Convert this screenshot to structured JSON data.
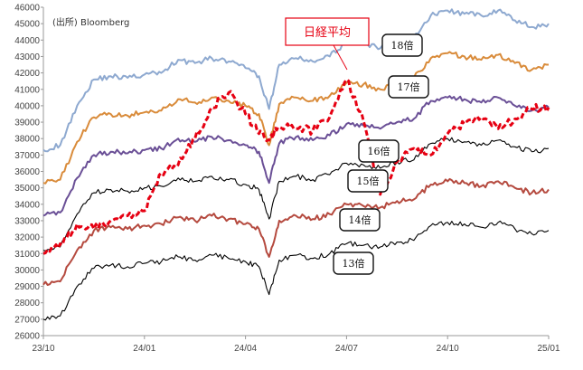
{
  "chart_data": {
    "type": "line",
    "source": "(出所) Bloomberg",
    "xlabel": "",
    "ylabel": "",
    "x_ticks": [
      "23/10",
      "24/01",
      "24/04",
      "24/07",
      "24/10",
      "25/01"
    ],
    "x_range": [
      "23/10",
      "25/01"
    ],
    "ylim": [
      26000,
      46000
    ],
    "y_ticks": [
      26000,
      27000,
      28000,
      29000,
      30000,
      31000,
      32000,
      33000,
      34000,
      35000,
      36000,
      37000,
      38000,
      39000,
      40000,
      41000,
      42000,
      43000,
      44000,
      45000,
      46000
    ],
    "grid": false,
    "series": [
      {
        "name": "18倍",
        "color": "#8ea9d0",
        "style": "solid",
        "x": [
          "23/10",
          "23/10.5",
          "23/11",
          "23/11.5",
          "23/12",
          "23/12.5",
          "24/01",
          "24/01.5",
          "24/02",
          "24/02.5",
          "24/03",
          "24/03.5",
          "24/04",
          "24/04.4",
          "24/04.7",
          "24/05",
          "24/05.5",
          "24/06",
          "24/06.5",
          "24/07",
          "24/07.5",
          "24/08",
          "24/08.5",
          "24/09",
          "24/09.5",
          "24/10",
          "24/10.5",
          "24/11",
          "24/11.5",
          "24/12",
          "24/12.5",
          "25/01"
        ],
        "values": [
          37300,
          37600,
          40000,
          41600,
          41800,
          41700,
          41900,
          42000,
          42800,
          42600,
          42900,
          42700,
          42300,
          41800,
          39800,
          42500,
          42900,
          42700,
          43000,
          43900,
          43800,
          43500,
          43900,
          44200,
          45500,
          45800,
          45600,
          45500,
          45800,
          45200,
          44800,
          45000
        ]
      },
      {
        "name": "17倍",
        "color": "#d98b3a",
        "style": "solid",
        "x": [
          "23/10",
          "23/10.5",
          "23/11",
          "23/11.5",
          "23/12",
          "23/12.5",
          "24/01",
          "24/01.5",
          "24/02",
          "24/02.5",
          "24/03",
          "24/03.5",
          "24/04",
          "24/04.4",
          "24/04.7",
          "24/05",
          "24/05.5",
          "24/06",
          "24/06.5",
          "24/07",
          "24/07.5",
          "24/08",
          "24/08.5",
          "24/09",
          "24/09.5",
          "24/10",
          "24/10.5",
          "24/11",
          "24/11.5",
          "24/12",
          "24/12.5",
          "25/01"
        ],
        "values": [
          35300,
          35500,
          37800,
          39300,
          39500,
          39400,
          39600,
          39700,
          40400,
          40200,
          40500,
          40300,
          40000,
          39500,
          37600,
          40100,
          40500,
          40300,
          40600,
          41400,
          41300,
          41000,
          41500,
          41700,
          42900,
          43200,
          43000,
          42800,
          43100,
          42600,
          42200,
          42500
        ]
      },
      {
        "name": "16倍",
        "color": "#6a4f96",
        "style": "solid",
        "x": [
          "23/10",
          "23/10.5",
          "23/11",
          "23/11.5",
          "23/12",
          "23/12.5",
          "24/01",
          "24/01.5",
          "24/02",
          "24/02.5",
          "24/03",
          "24/03.5",
          "24/04",
          "24/04.4",
          "24/04.7",
          "24/05",
          "24/05.5",
          "24/06",
          "24/06.5",
          "24/07",
          "24/07.5",
          "24/08",
          "24/08.5",
          "24/09",
          "24/09.5",
          "24/10",
          "24/10.5",
          "24/11",
          "24/11.5",
          "24/12",
          "24/12.5",
          "25/01"
        ],
        "values": [
          33300,
          33500,
          35600,
          37000,
          37200,
          37100,
          37300,
          37400,
          38000,
          37800,
          38100,
          37900,
          37600,
          37200,
          35300,
          37700,
          38100,
          37900,
          38200,
          38900,
          38800,
          38600,
          39000,
          39200,
          40300,
          40500,
          40400,
          40200,
          40500,
          40000,
          39700,
          39900
        ]
      },
      {
        "name": "15倍",
        "color": "#000000",
        "style": "solid",
        "x": [
          "23/10",
          "23/10.5",
          "23/11",
          "23/11.5",
          "23/12",
          "23/12.5",
          "24/01",
          "24/01.5",
          "24/02",
          "24/02.5",
          "24/03",
          "24/03.5",
          "24/04",
          "24/04.4",
          "24/04.7",
          "24/05",
          "24/05.5",
          "24/06",
          "24/06.5",
          "24/07",
          "24/07.5",
          "24/08",
          "24/08.5",
          "24/09",
          "24/09.5",
          "24/10",
          "24/10.5",
          "24/11",
          "24/11.5",
          "24/12",
          "24/12.5",
          "25/01"
        ],
        "values": [
          31200,
          31400,
          33400,
          34700,
          34900,
          34800,
          35000,
          35100,
          35600,
          35400,
          35700,
          35500,
          35200,
          34900,
          33100,
          35400,
          35700,
          35500,
          35800,
          36500,
          36400,
          36200,
          36600,
          36700,
          37700,
          38000,
          37800,
          37600,
          37900,
          37500,
          37200,
          37400
        ]
      },
      {
        "name": "14倍",
        "color": "#b54a3f",
        "style": "solid",
        "x": [
          "23/10",
          "23/10.5",
          "23/11",
          "23/11.5",
          "23/12",
          "23/12.5",
          "24/01",
          "24/01.5",
          "24/02",
          "24/02.5",
          "24/03",
          "24/03.5",
          "24/04",
          "24/04.4",
          "24/04.7",
          "24/05",
          "24/05.5",
          "24/06",
          "24/06.5",
          "24/07",
          "24/07.5",
          "24/08",
          "24/08.5",
          "24/09",
          "24/09.5",
          "24/10",
          "24/10.5",
          "24/11",
          "24/11.5",
          "24/12",
          "24/12.5",
          "25/01"
        ],
        "values": [
          29100,
          29300,
          31200,
          32400,
          32600,
          32500,
          32700,
          32800,
          33200,
          33000,
          33300,
          33100,
          32800,
          32500,
          30800,
          33000,
          33300,
          33100,
          33400,
          34000,
          33900,
          33800,
          34200,
          34300,
          35200,
          35400,
          35300,
          35100,
          35400,
          35000,
          34700,
          34900
        ]
      },
      {
        "name": "13倍",
        "color": "#000000",
        "style": "solid",
        "x": [
          "23/10",
          "23/10.5",
          "23/11",
          "23/11.5",
          "23/12",
          "23/12.5",
          "24/01",
          "24/01.5",
          "24/02",
          "24/02.5",
          "24/03",
          "24/03.5",
          "24/04",
          "24/04.4",
          "24/04.7",
          "24/05",
          "24/05.5",
          "24/06",
          "24/06.5",
          "24/07",
          "24/07.5",
          "24/08",
          "24/08.5",
          "24/09",
          "24/09.5",
          "24/10",
          "24/10.5",
          "24/11",
          "24/11.5",
          "24/12",
          "24/12.5",
          "25/01"
        ],
        "values": [
          27000,
          27200,
          29000,
          30100,
          30300,
          30200,
          30400,
          30500,
          30800,
          30600,
          30900,
          30700,
          30500,
          30200,
          28500,
          30600,
          30900,
          30700,
          31000,
          31600,
          31500,
          31400,
          31700,
          31800,
          32700,
          32900,
          32800,
          32600,
          32900,
          32500,
          32200,
          32400
        ]
      },
      {
        "name": "日経平均",
        "color": "#e60012",
        "style": "dashed",
        "x": [
          "23/10",
          "23/10.5",
          "23/11",
          "23/11.5",
          "23/12",
          "23/12.5",
          "24/01",
          "24/01.5",
          "24/02",
          "24/02.5",
          "24/03",
          "24/03.5",
          "24/04",
          "24/04.4",
          "24/04.7",
          "24/05",
          "24/05.5",
          "24/06",
          "24/06.5",
          "24/07",
          "24/07.5",
          "24/08",
          "24/08.5",
          "24/09",
          "24/09.5",
          "24/10",
          "24/10.5",
          "24/11",
          "24/11.5",
          "24/12",
          "24/12.5",
          "25/01"
        ],
        "values": [
          31000,
          31600,
          32800,
          32500,
          33000,
          33300,
          33600,
          35900,
          36400,
          38000,
          39900,
          40800,
          39500,
          38300,
          37900,
          38700,
          38600,
          38500,
          39300,
          41600,
          39100,
          34600,
          36600,
          37400,
          37000,
          38300,
          38900,
          39300,
          38600,
          39200,
          39800,
          39900
        ]
      }
    ],
    "annotations": [
      {
        "text": "日経平均",
        "target": "日経平均"
      },
      {
        "text": "18倍",
        "target": "18倍"
      },
      {
        "text": "17倍",
        "target": "17倍"
      },
      {
        "text": "16倍",
        "target": "16倍"
      },
      {
        "text": "15倍",
        "target": "15倍"
      },
      {
        "text": "14倍",
        "target": "14倍"
      },
      {
        "text": "13倍",
        "target": "13倍"
      }
    ]
  }
}
